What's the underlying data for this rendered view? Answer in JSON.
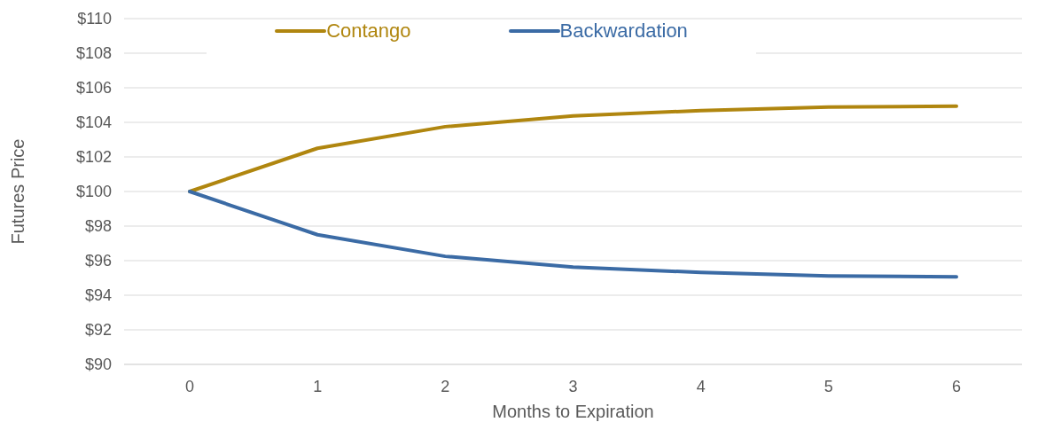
{
  "chart_data": {
    "type": "line",
    "xlabel": "Months to Expiration",
    "ylabel": "Futures Price",
    "categories": [
      "0",
      "1",
      "2",
      "3",
      "4",
      "5",
      "6"
    ],
    "series": [
      {
        "name": "Contango",
        "color": "#b0860f",
        "values": [
          100,
          102.5,
          103.75,
          104.37,
          104.68,
          104.88,
          104.94
        ]
      },
      {
        "name": "Backwardation",
        "color": "#3b6ba5",
        "values": [
          100,
          97.5,
          96.25,
          95.63,
          95.32,
          95.12,
          95.06
        ]
      }
    ],
    "ylim": [
      90,
      110
    ],
    "yticks": [
      {
        "value": 90,
        "label": "$90"
      },
      {
        "value": 92,
        "label": "$92"
      },
      {
        "value": 94,
        "label": "$94"
      },
      {
        "value": 96,
        "label": "$96"
      },
      {
        "value": 98,
        "label": "$98"
      },
      {
        "value": 100,
        "label": "$100"
      },
      {
        "value": 102,
        "label": "$102"
      },
      {
        "value": 104,
        "label": "$104"
      },
      {
        "value": 106,
        "label": "$106"
      },
      {
        "value": 108,
        "label": "$108"
      },
      {
        "value": 110,
        "label": "$110"
      }
    ],
    "grid": "y",
    "legend": "top",
    "marker": "none",
    "line_style": "solid"
  }
}
